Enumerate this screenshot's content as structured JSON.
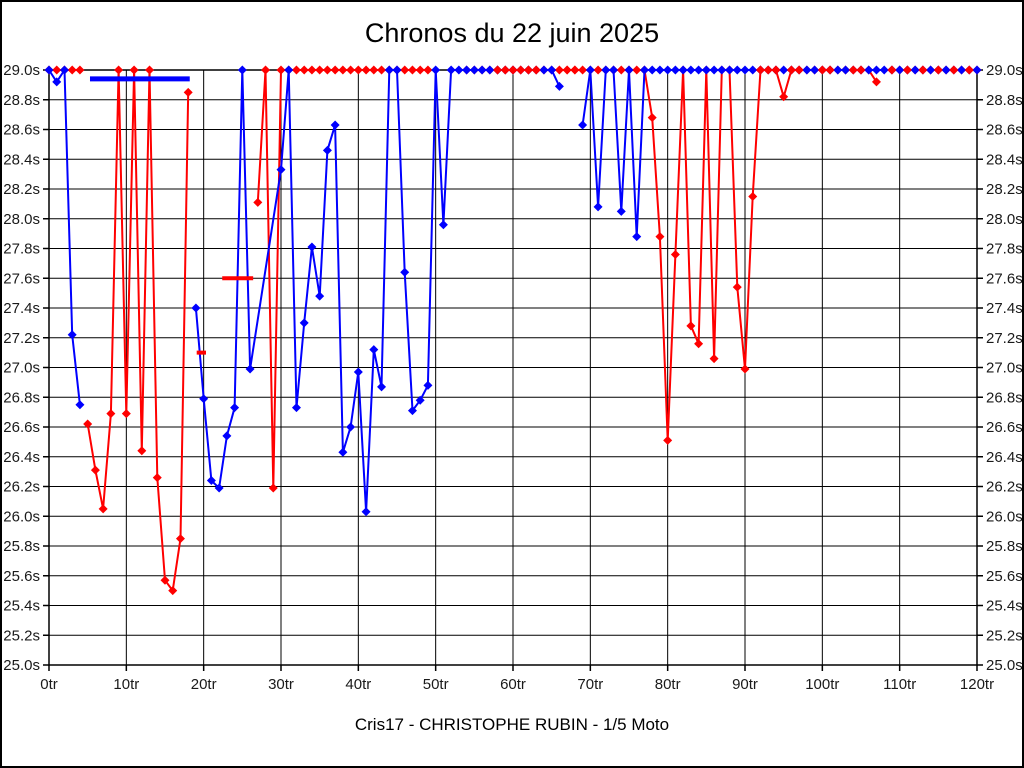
{
  "page": {
    "background": "#ffffff",
    "border_color": "#000000"
  },
  "chart_data": {
    "type": "line",
    "title": "Chronos du 22 juin 2025",
    "footer": "Cris17 - CHRISTOPHE RUBIN - 1/5 Moto",
    "grid": true,
    "legend": "none",
    "x_axis": {
      "unit": "tr",
      "min": 0,
      "max": 120,
      "tick_step": 10,
      "tick_labels": [
        "0tr",
        "10tr",
        "20tr",
        "30tr",
        "40tr",
        "50tr",
        "60tr",
        "70tr",
        "80tr",
        "90tr",
        "100tr",
        "110tr",
        "120tr"
      ]
    },
    "y_axis": {
      "unit": "s",
      "min": 25.0,
      "max": 29.0,
      "tick_step": 0.2,
      "tick_labels": [
        "29.0s",
        "28.8s",
        "28.6s",
        "28.4s",
        "28.2s",
        "28.0s",
        "27.8s",
        "27.6s",
        "27.4s",
        "27.2s",
        "27.0s",
        "26.8s",
        "26.6s",
        "26.4s",
        "26.2s",
        "26.0s",
        "25.8s",
        "25.6s",
        "25.4s",
        "25.2s",
        "25.0s"
      ]
    },
    "clip_note": "values >= 29.0 are clipped to the 29.0 line",
    "series": [
      {
        "name": "serie-rouge",
        "color": "#ff0000",
        "segments": [
          [
            {
              "from": 0,
              "to": 4,
              "v": 29.0
            }
          ],
          [
            [
              5,
              26.62
            ],
            [
              6,
              26.31
            ],
            [
              7,
              26.05
            ],
            [
              8,
              26.69
            ],
            [
              9,
              29.0
            ],
            [
              10,
              26.69
            ],
            [
              11,
              29.0
            ],
            [
              12,
              26.44
            ],
            [
              13,
              29.0
            ],
            [
              14,
              26.26
            ],
            [
              15,
              25.57
            ],
            [
              16,
              25.5
            ],
            [
              17,
              25.85
            ],
            [
              18,
              28.85
            ]
          ],
          [
            [
              27,
              28.11
            ],
            [
              28,
              29.0
            ],
            [
              29,
              26.19
            ],
            {
              "from": 30,
              "to": 49,
              "v": 29.0
            }
          ],
          [
            {
              "from": 54,
              "to": 77,
              "v": 29.0
            },
            [
              78,
              28.68
            ],
            [
              79,
              27.88
            ],
            [
              80,
              26.51
            ],
            [
              81,
              27.76
            ],
            [
              82,
              29.0
            ],
            [
              83,
              27.28
            ],
            [
              84,
              27.16
            ],
            [
              85,
              29.0
            ],
            [
              86,
              27.06
            ],
            [
              87,
              29.0
            ],
            [
              88,
              29.0
            ],
            [
              89,
              27.54
            ],
            [
              90,
              26.99
            ],
            [
              91,
              28.15
            ],
            [
              92,
              29.0
            ],
            [
              93,
              29.0
            ],
            [
              94,
              29.0
            ],
            [
              95,
              28.82
            ],
            {
              "from": 96,
              "to": 106,
              "v": 29.0
            },
            [
              107,
              28.92
            ]
          ],
          [
            {
              "from": 109,
              "to": 120,
              "v": 29.0
            }
          ]
        ]
      },
      {
        "name": "serie-bleue",
        "color": "#0000ff",
        "segments": [
          [
            [
              0,
              29.0
            ],
            [
              1,
              28.92
            ],
            [
              2,
              29.0
            ],
            [
              3,
              27.22
            ],
            [
              4,
              26.75
            ]
          ],
          [
            [
              19,
              27.4
            ],
            [
              20,
              26.79
            ],
            [
              21,
              26.24
            ],
            [
              22,
              26.19
            ],
            [
              23,
              26.54
            ],
            [
              24,
              26.73
            ],
            [
              25,
              29.0
            ],
            [
              26,
              26.99
            ],
            [
              30,
              28.33
            ],
            [
              31,
              29.0
            ],
            [
              32,
              26.73
            ],
            [
              33,
              27.3
            ],
            [
              34,
              27.81
            ],
            [
              35,
              27.48
            ],
            [
              36,
              28.46
            ],
            [
              37,
              28.63
            ],
            [
              38,
              26.43
            ],
            [
              39,
              26.6
            ],
            [
              40,
              26.97
            ],
            [
              41,
              26.03
            ],
            [
              42,
              27.12
            ],
            [
              43,
              26.87
            ],
            [
              44,
              29.0
            ],
            [
              45,
              29.0
            ],
            [
              46,
              27.64
            ],
            [
              47,
              26.71
            ],
            [
              48,
              26.78
            ],
            [
              49,
              26.88
            ],
            [
              50,
              29.0
            ],
            [
              51,
              27.96
            ],
            {
              "from": 52,
              "to": 65,
              "v": 29.0
            },
            [
              66,
              28.89
            ]
          ],
          [
            [
              69,
              28.63
            ],
            [
              70,
              29.0
            ],
            [
              71,
              28.08
            ],
            [
              72,
              29.0
            ],
            [
              73,
              29.0
            ],
            [
              74,
              28.05
            ],
            [
              75,
              29.0
            ],
            [
              76,
              27.88
            ],
            {
              "from": 77,
              "to": 120,
              "v": 29.0
            }
          ]
        ]
      }
    ],
    "overlay_segments": [
      {
        "name": "best-average-blue",
        "color": "#0000ff",
        "value": 28.94,
        "from_lap": 5.3,
        "to_lap": 18.2,
        "thickness": 5
      },
      {
        "name": "best-average-red",
        "color": "#ff0000",
        "value": 27.6,
        "from_lap": 22.4,
        "to_lap": 26.4,
        "thickness": 4
      },
      {
        "name": "best-lap-red-tick",
        "color": "#ff0000",
        "value": 27.1,
        "from_lap": 19.1,
        "to_lap": 20.3,
        "thickness": 4
      }
    ],
    "top_marks": {
      "color": "#ff0000",
      "value": 29.0,
      "laps": [
        58,
        59,
        60,
        61,
        62,
        63,
        67,
        68,
        92,
        93,
        94,
        96,
        97,
        100,
        101,
        104,
        105,
        109,
        111,
        113,
        115,
        117,
        119
      ]
    }
  }
}
